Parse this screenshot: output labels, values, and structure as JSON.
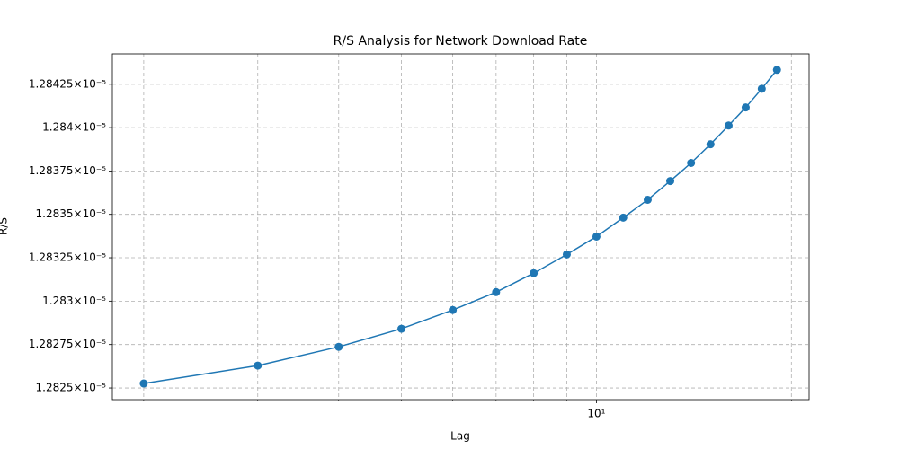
{
  "chart_data": {
    "type": "line",
    "title": "R/S Analysis for Network Download Rate",
    "xlabel": "Lag",
    "ylabel": "R/S",
    "xscale": "log",
    "yscale": "log",
    "grid": true,
    "x": [
      2,
      3,
      4,
      5,
      6,
      7,
      8,
      9,
      10,
      11,
      12,
      13,
      14,
      15,
      16,
      17,
      18,
      19
    ],
    "series": [
      {
        "name": "R/S",
        "color": "#1f77b4",
        "values": [
          1.282526e-05,
          1.282629e-05,
          1.282737e-05,
          1.282841e-05,
          1.282949e-05,
          1.283052e-05,
          1.283161e-05,
          1.283269e-05,
          1.283372e-05,
          1.283481e-05,
          1.283584e-05,
          1.283692e-05,
          1.283796e-05,
          1.283904e-05,
          1.284012e-05,
          1.284116e-05,
          1.284224e-05,
          1.284333e-05
        ]
      }
    ],
    "xlim": [
      1.789,
      21.3
    ],
    "xticks": [
      {
        "value": 10,
        "label": "10¹"
      }
    ],
    "xminorticks": [
      2,
      3,
      4,
      5,
      6,
      7,
      8,
      9,
      20
    ],
    "ylim": [
      1.282433e-05,
      1.284425e-05
    ],
    "yticks": [
      {
        "value": 1.2825e-05,
        "label": "1.2825×10⁻⁵"
      },
      {
        "value": 1.28275e-05,
        "label": "1.28275×10⁻⁵"
      },
      {
        "value": 1.283e-05,
        "label": "1.283×10⁻⁵"
      },
      {
        "value": 1.28325e-05,
        "label": "1.28325×10⁻⁵"
      },
      {
        "value": 1.2835e-05,
        "label": "1.2835×10⁻⁵"
      },
      {
        "value": 1.28375e-05,
        "label": "1.28375×10⁻⁵"
      },
      {
        "value": 1.284e-05,
        "label": "1.284×10⁻⁵"
      },
      {
        "value": 1.28425e-05,
        "label": "1.28425×10⁻⁵"
      }
    ]
  }
}
